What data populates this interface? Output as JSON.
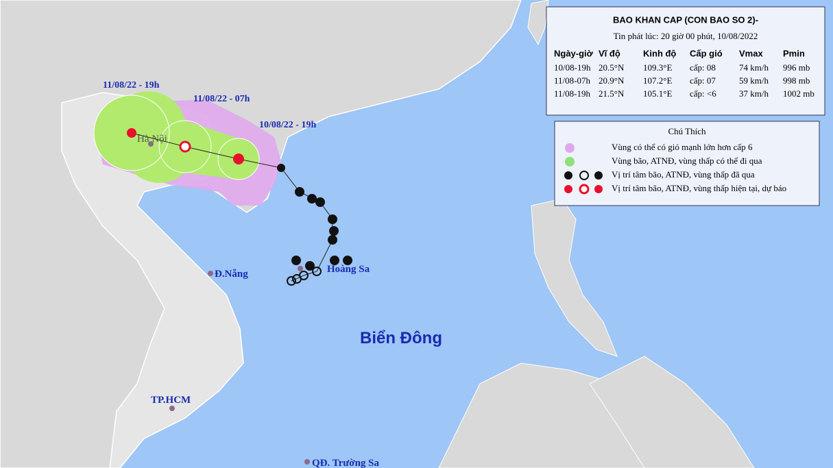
{
  "header": {
    "title": "BAO KHAN CAP (CON BAO SO 2)-",
    "subtitle": "Tin phát lúc: 20 giờ 00 phút, 10/08/2022"
  },
  "table": {
    "columns": [
      "Ngày-giờ",
      "Vĩ độ",
      "Kinh độ",
      "Cấp gió",
      "Vmax",
      "Pmin"
    ],
    "rows": [
      [
        "10/08-19h",
        "20.5°N",
        "109.3°E",
        "cấp: 08",
        "74 km/h",
        "996 mb"
      ],
      [
        "11/08-07h",
        "20.9°N",
        "107.2°E",
        "cấp: 07",
        "59 km/h",
        "998 mb"
      ],
      [
        "11/08-19h",
        "21.5°N",
        "105.1°E",
        "cấp: <6",
        "37 km/h",
        "1002 mb"
      ]
    ]
  },
  "legend": {
    "title": "Chú Thích",
    "items": [
      "Vùng có thể có gió mạnh lớn hơn cấp 6",
      "Vùng bão, ATNĐ, vùng thấp có thể đi qua",
      "Vị trí tâm bão, ATNĐ, vùng thấp đã qua",
      "Vị trí tâm bão, ATNĐ, vùng thấp hiện tại, dự báo"
    ]
  },
  "map_labels": {
    "times": [
      "11/08/22 - 19h",
      "11/08/22 - 07h",
      "10/08/22 - 19h"
    ],
    "places": [
      "Hà Nội",
      "Đ.Nẵng",
      "Hoàng Sa",
      "Biển Đông",
      "TP.HCM",
      "QĐ. Trường Sa"
    ]
  }
}
